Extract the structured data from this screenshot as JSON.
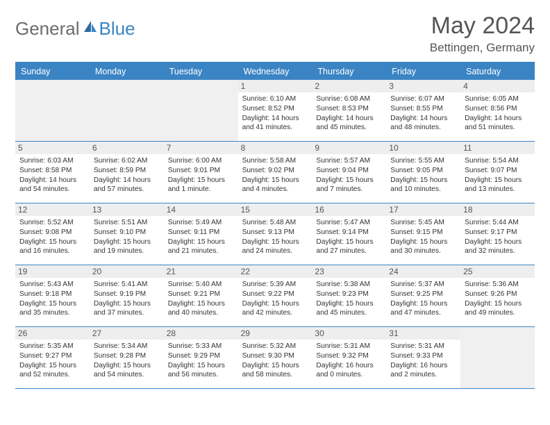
{
  "brand": {
    "part1": "General",
    "part2": "Blue"
  },
  "title": "May 2024",
  "location": "Bettingen, Germany",
  "colors": {
    "accent": "#3b84c4",
    "text": "#333",
    "headerText": "#555",
    "cellHeaderBg": "#eeeeee"
  },
  "dayNames": [
    "Sunday",
    "Monday",
    "Tuesday",
    "Wednesday",
    "Thursday",
    "Friday",
    "Saturday"
  ],
  "weeks": [
    [
      {
        "n": "",
        "sr": "",
        "ss": "",
        "dl": ""
      },
      {
        "n": "",
        "sr": "",
        "ss": "",
        "dl": ""
      },
      {
        "n": "",
        "sr": "",
        "ss": "",
        "dl": ""
      },
      {
        "n": "1",
        "sr": "Sunrise: 6:10 AM",
        "ss": "Sunset: 8:52 PM",
        "dl": "Daylight: 14 hours and 41 minutes."
      },
      {
        "n": "2",
        "sr": "Sunrise: 6:08 AM",
        "ss": "Sunset: 8:53 PM",
        "dl": "Daylight: 14 hours and 45 minutes."
      },
      {
        "n": "3",
        "sr": "Sunrise: 6:07 AM",
        "ss": "Sunset: 8:55 PM",
        "dl": "Daylight: 14 hours and 48 minutes."
      },
      {
        "n": "4",
        "sr": "Sunrise: 6:05 AM",
        "ss": "Sunset: 8:56 PM",
        "dl": "Daylight: 14 hours and 51 minutes."
      }
    ],
    [
      {
        "n": "5",
        "sr": "Sunrise: 6:03 AM",
        "ss": "Sunset: 8:58 PM",
        "dl": "Daylight: 14 hours and 54 minutes."
      },
      {
        "n": "6",
        "sr": "Sunrise: 6:02 AM",
        "ss": "Sunset: 8:59 PM",
        "dl": "Daylight: 14 hours and 57 minutes."
      },
      {
        "n": "7",
        "sr": "Sunrise: 6:00 AM",
        "ss": "Sunset: 9:01 PM",
        "dl": "Daylight: 15 hours and 1 minute."
      },
      {
        "n": "8",
        "sr": "Sunrise: 5:58 AM",
        "ss": "Sunset: 9:02 PM",
        "dl": "Daylight: 15 hours and 4 minutes."
      },
      {
        "n": "9",
        "sr": "Sunrise: 5:57 AM",
        "ss": "Sunset: 9:04 PM",
        "dl": "Daylight: 15 hours and 7 minutes."
      },
      {
        "n": "10",
        "sr": "Sunrise: 5:55 AM",
        "ss": "Sunset: 9:05 PM",
        "dl": "Daylight: 15 hours and 10 minutes."
      },
      {
        "n": "11",
        "sr": "Sunrise: 5:54 AM",
        "ss": "Sunset: 9:07 PM",
        "dl": "Daylight: 15 hours and 13 minutes."
      }
    ],
    [
      {
        "n": "12",
        "sr": "Sunrise: 5:52 AM",
        "ss": "Sunset: 9:08 PM",
        "dl": "Daylight: 15 hours and 16 minutes."
      },
      {
        "n": "13",
        "sr": "Sunrise: 5:51 AM",
        "ss": "Sunset: 9:10 PM",
        "dl": "Daylight: 15 hours and 19 minutes."
      },
      {
        "n": "14",
        "sr": "Sunrise: 5:49 AM",
        "ss": "Sunset: 9:11 PM",
        "dl": "Daylight: 15 hours and 21 minutes."
      },
      {
        "n": "15",
        "sr": "Sunrise: 5:48 AM",
        "ss": "Sunset: 9:13 PM",
        "dl": "Daylight: 15 hours and 24 minutes."
      },
      {
        "n": "16",
        "sr": "Sunrise: 5:47 AM",
        "ss": "Sunset: 9:14 PM",
        "dl": "Daylight: 15 hours and 27 minutes."
      },
      {
        "n": "17",
        "sr": "Sunrise: 5:45 AM",
        "ss": "Sunset: 9:15 PM",
        "dl": "Daylight: 15 hours and 30 minutes."
      },
      {
        "n": "18",
        "sr": "Sunrise: 5:44 AM",
        "ss": "Sunset: 9:17 PM",
        "dl": "Daylight: 15 hours and 32 minutes."
      }
    ],
    [
      {
        "n": "19",
        "sr": "Sunrise: 5:43 AM",
        "ss": "Sunset: 9:18 PM",
        "dl": "Daylight: 15 hours and 35 minutes."
      },
      {
        "n": "20",
        "sr": "Sunrise: 5:41 AM",
        "ss": "Sunset: 9:19 PM",
        "dl": "Daylight: 15 hours and 37 minutes."
      },
      {
        "n": "21",
        "sr": "Sunrise: 5:40 AM",
        "ss": "Sunset: 9:21 PM",
        "dl": "Daylight: 15 hours and 40 minutes."
      },
      {
        "n": "22",
        "sr": "Sunrise: 5:39 AM",
        "ss": "Sunset: 9:22 PM",
        "dl": "Daylight: 15 hours and 42 minutes."
      },
      {
        "n": "23",
        "sr": "Sunrise: 5:38 AM",
        "ss": "Sunset: 9:23 PM",
        "dl": "Daylight: 15 hours and 45 minutes."
      },
      {
        "n": "24",
        "sr": "Sunrise: 5:37 AM",
        "ss": "Sunset: 9:25 PM",
        "dl": "Daylight: 15 hours and 47 minutes."
      },
      {
        "n": "25",
        "sr": "Sunrise: 5:36 AM",
        "ss": "Sunset: 9:26 PM",
        "dl": "Daylight: 15 hours and 49 minutes."
      }
    ],
    [
      {
        "n": "26",
        "sr": "Sunrise: 5:35 AM",
        "ss": "Sunset: 9:27 PM",
        "dl": "Daylight: 15 hours and 52 minutes."
      },
      {
        "n": "27",
        "sr": "Sunrise: 5:34 AM",
        "ss": "Sunset: 9:28 PM",
        "dl": "Daylight: 15 hours and 54 minutes."
      },
      {
        "n": "28",
        "sr": "Sunrise: 5:33 AM",
        "ss": "Sunset: 9:29 PM",
        "dl": "Daylight: 15 hours and 56 minutes."
      },
      {
        "n": "29",
        "sr": "Sunrise: 5:32 AM",
        "ss": "Sunset: 9:30 PM",
        "dl": "Daylight: 15 hours and 58 minutes."
      },
      {
        "n": "30",
        "sr": "Sunrise: 5:31 AM",
        "ss": "Sunset: 9:32 PM",
        "dl": "Daylight: 16 hours and 0 minutes."
      },
      {
        "n": "31",
        "sr": "Sunrise: 5:31 AM",
        "ss": "Sunset: 9:33 PM",
        "dl": "Daylight: 16 hours and 2 minutes."
      },
      {
        "n": "",
        "sr": "",
        "ss": "",
        "dl": ""
      }
    ]
  ]
}
